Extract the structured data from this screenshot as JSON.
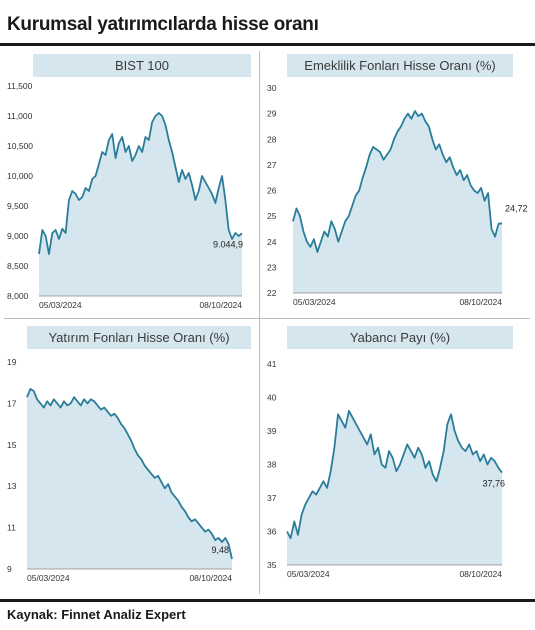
{
  "header": {
    "title": "Kurumsal yatırımcılarda hisse oranı"
  },
  "footer": {
    "source": "Kaynak: Finnet Analiz Expert"
  },
  "chart_data": [
    {
      "type": "area",
      "title": "BIST 100",
      "x_start_label": "05/03/2024",
      "x_end_label": "08/10/2024",
      "yticks": [
        "8,000",
        "8,500",
        "9,000",
        "9,500",
        "10,000",
        "10,500",
        "11,000",
        "11,500"
      ],
      "ylim": [
        8000,
        11500
      ],
      "end_value_label": "9.044,9",
      "series": [
        {
          "values": [
            8700,
            9100,
            9000,
            8700,
            9050,
            9100,
            8950,
            9120,
            9050,
            9600,
            9750,
            9700,
            9600,
            9650,
            9800,
            9750,
            9950,
            10000,
            10200,
            10400,
            10350,
            10600,
            10700,
            10300,
            10550,
            10650,
            10400,
            10500,
            10250,
            10350,
            10500,
            10400,
            10650,
            10600,
            10900,
            11000,
            11050,
            11000,
            10850,
            10600,
            10400,
            10150,
            9900,
            10100,
            9950,
            10050,
            9850,
            9600,
            9750,
            10000,
            9900,
            9800,
            9700,
            9550,
            9800,
            10000,
            9600,
            9100,
            8950,
            9050,
            9000,
            9045
          ]
        }
      ]
    },
    {
      "type": "area",
      "title": "Emeklilik Fonları Hisse Oranı (%)",
      "x_start_label": "05/03/2024",
      "x_end_label": "08/10/2024",
      "yticks": [
        "22",
        "23",
        "24",
        "25",
        "26",
        "27",
        "28",
        "29",
        "30"
      ],
      "ylim": [
        22,
        30
      ],
      "end_value_label": "24,72",
      "series": [
        {
          "values": [
            24.8,
            25.3,
            25.0,
            24.4,
            24.0,
            23.8,
            24.1,
            23.6,
            24.0,
            24.4,
            24.2,
            24.8,
            24.5,
            24.0,
            24.4,
            24.8,
            25.0,
            25.4,
            25.8,
            26.0,
            26.5,
            26.9,
            27.4,
            27.7,
            27.6,
            27.5,
            27.2,
            27.4,
            27.6,
            28.0,
            28.3,
            28.5,
            28.8,
            29.0,
            28.8,
            29.1,
            28.9,
            29.0,
            28.7,
            28.5,
            28.0,
            27.6,
            27.8,
            27.4,
            27.1,
            27.3,
            26.9,
            26.6,
            26.8,
            26.4,
            26.6,
            26.2,
            26.0,
            25.9,
            26.1,
            25.6,
            25.9,
            24.5,
            24.2,
            24.7,
            24.72
          ]
        }
      ]
    },
    {
      "type": "area",
      "title": "Yatırım Fonları Hisse Oranı (%)",
      "x_start_label": "05/03/2024",
      "x_end_label": "08/10/2024",
      "yticks": [
        "9",
        "11",
        "13",
        "15",
        "17",
        "19"
      ],
      "ylim": [
        9,
        19
      ],
      "end_value_label": "9,48",
      "series": [
        {
          "values": [
            17.3,
            17.7,
            17.6,
            17.2,
            17.0,
            16.8,
            17.1,
            16.9,
            17.2,
            17.0,
            16.8,
            17.1,
            16.9,
            17.0,
            17.3,
            17.1,
            16.9,
            17.2,
            17.0,
            17.2,
            17.1,
            16.9,
            16.7,
            16.8,
            16.6,
            16.4,
            16.5,
            16.3,
            16.0,
            15.8,
            15.5,
            15.2,
            14.8,
            14.5,
            14.3,
            14.0,
            13.8,
            13.6,
            13.4,
            13.5,
            13.2,
            12.9,
            13.1,
            12.7,
            12.5,
            12.3,
            12.0,
            11.8,
            11.5,
            11.3,
            11.4,
            11.2,
            11.0,
            10.8,
            10.9,
            10.7,
            10.4,
            10.5,
            10.3,
            10.5,
            10.2,
            9.48
          ]
        }
      ]
    },
    {
      "type": "area",
      "title": "Yabancı Payı (%)",
      "x_start_label": "05/03/2024",
      "x_end_label": "08/10/2024",
      "yticks": [
        "35",
        "36",
        "37",
        "38",
        "39",
        "40",
        "41"
      ],
      "ylim": [
        35,
        41
      ],
      "end_value_label": "37,76",
      "series": [
        {
          "values": [
            36.0,
            35.8,
            36.3,
            35.9,
            36.5,
            36.8,
            37.0,
            37.2,
            37.1,
            37.3,
            37.5,
            37.3,
            37.8,
            38.5,
            39.5,
            39.3,
            39.1,
            39.6,
            39.4,
            39.2,
            39.0,
            38.8,
            38.6,
            38.9,
            38.3,
            38.5,
            38.0,
            37.9,
            38.4,
            38.2,
            37.8,
            38.0,
            38.3,
            38.6,
            38.4,
            38.2,
            38.5,
            38.3,
            37.9,
            38.1,
            37.7,
            37.5,
            37.9,
            38.4,
            39.2,
            39.5,
            39.0,
            38.7,
            38.5,
            38.4,
            38.6,
            38.3,
            38.4,
            38.1,
            38.3,
            38.0,
            38.2,
            38.1,
            37.9,
            37.76
          ]
        }
      ]
    }
  ]
}
